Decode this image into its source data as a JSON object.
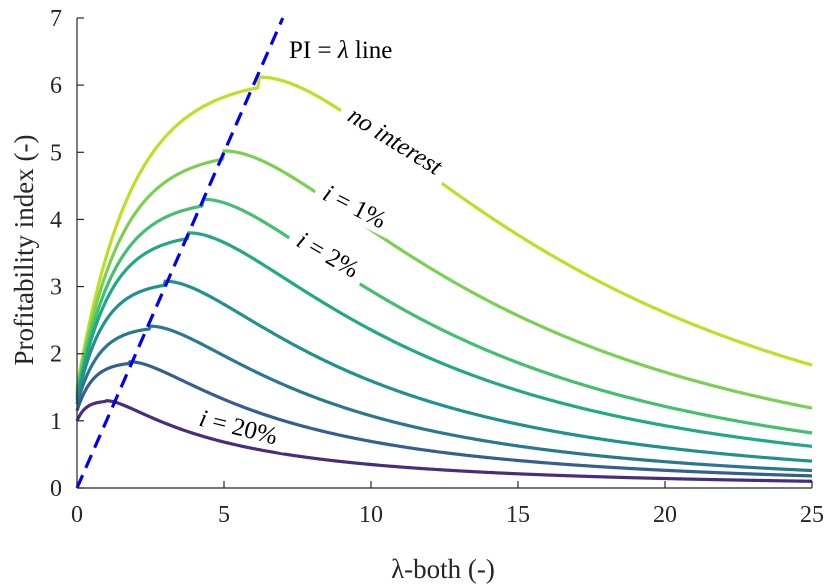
{
  "chart_data": {
    "type": "line",
    "title": "",
    "xlabel": "λ-both (-)",
    "ylabel": "Profitability index (-)",
    "xlim": [
      0,
      25
    ],
    "ylim": [
      0,
      7
    ],
    "xticks": [
      0,
      5,
      10,
      15,
      20,
      25
    ],
    "yticks": [
      0,
      1,
      2,
      3,
      4,
      5,
      6,
      7
    ],
    "grid": false,
    "series": [
      {
        "name": "no interest",
        "color": "#bddf26",
        "peak": [
          6.2,
          6.12
        ],
        "y0": 1.5,
        "y25": 1.83
      },
      {
        "name": "i = 1%",
        "color": "#7ad151",
        "peak": [
          5.0,
          5.02
        ],
        "y0": 1.45,
        "y25": 1.19
      },
      {
        "name": "",
        "color": "#44bf70",
        "peak": [
          4.3,
          4.3
        ],
        "y0": 1.4,
        "y25": 0.82
      },
      {
        "name": "i = 2%",
        "color": "#22a884",
        "peak": [
          3.8,
          3.8
        ],
        "y0": 1.35,
        "y25": 0.62
      },
      {
        "name": "",
        "color": "#21918c",
        "peak": [
          3.0,
          3.08
        ],
        "y0": 1.3,
        "y25": 0.4
      },
      {
        "name": "",
        "color": "#2a788e",
        "peak": [
          2.5,
          2.41
        ],
        "y0": 1.25,
        "y25": 0.26
      },
      {
        "name": "",
        "color": "#355f8d",
        "peak": [
          1.8,
          1.88
        ],
        "y0": 1.15,
        "y25": 0.18
      },
      {
        "name": "i = 20%",
        "color": "#472d7b",
        "peak": [
          1.0,
          1.3
        ],
        "y0": 1.0,
        "y25": 0.1
      }
    ],
    "reference_line": {
      "name": "PI = λ line",
      "equation": "y = x",
      "color": "#0000ee",
      "style": "dashed"
    },
    "annotations": {
      "pi_line": {
        "prefix": "PI = ",
        "symbol": "λ",
        "suffix": " line"
      },
      "no_interest": "no interest",
      "i1": {
        "var": "i",
        "rest": " = 1%"
      },
      "i2": {
        "var": "i",
        "rest": " = 2%"
      },
      "i20": {
        "var": "i",
        "rest": " = 20%"
      }
    }
  }
}
